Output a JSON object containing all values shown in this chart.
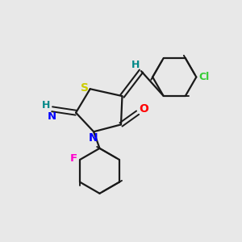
{
  "background_color": "#e8e8e8",
  "bond_color": "#1a1a1a",
  "atom_colors": {
    "S": "#cccc00",
    "N": "#0000ff",
    "O": "#ff0000",
    "F": "#ff00cc",
    "Cl": "#33cc33",
    "H_label": "#008888",
    "C": "#1a1a1a"
  },
  "figsize": [
    3.0,
    3.0
  ],
  "dpi": 100
}
